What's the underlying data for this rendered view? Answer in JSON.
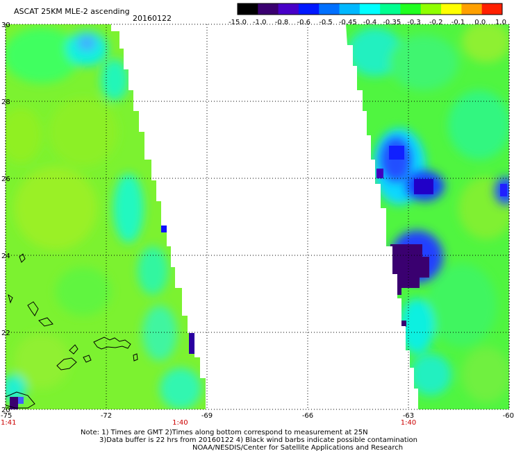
{
  "header": {
    "title": "ASCAT 25KM MLE-2 ascending",
    "date": "20160122"
  },
  "colorbar": {
    "labels": [
      "-15.0",
      "-1.0",
      "-0.8",
      "-0.6",
      "-0.5",
      "-0.45",
      "-0.4",
      "-0.35",
      "-0.3",
      "-0.2",
      "-0.1",
      "0.0",
      "1.0"
    ],
    "colors": [
      "#000000",
      "#3a0070",
      "#4800c8",
      "#0018ff",
      "#0070ff",
      "#00b8ff",
      "#00ffff",
      "#00ff90",
      "#20ff20",
      "#90ff00",
      "#ffff00",
      "#ffa000",
      "#ff2000"
    ]
  },
  "axes": {
    "lon_labels": [
      "-75",
      "-72",
      "-69",
      "-66",
      "-63",
      "-60"
    ],
    "lat_labels": [
      "20",
      "22",
      "24",
      "26",
      "28",
      "30"
    ],
    "lon_range": [
      -75,
      -60
    ],
    "lat_range": [
      20,
      30
    ],
    "grid": "dotted"
  },
  "time_labels": [
    {
      "lon": -75,
      "text": "1:41"
    },
    {
      "lon": -69.8,
      "text": "1:40"
    },
    {
      "lon": -63,
      "text": "1:40"
    }
  ],
  "notes": {
    "line1": "Note: 1) Times are GMT 2)Times along bottom correspond to measurement at 25N",
    "line2": "3)Data buffer is 22 hrs from 20160122 4) Black wind barbs indicate possible contamination",
    "line3": "NOAA/NESDIS/Center for Satellite Applications and Research"
  }
}
